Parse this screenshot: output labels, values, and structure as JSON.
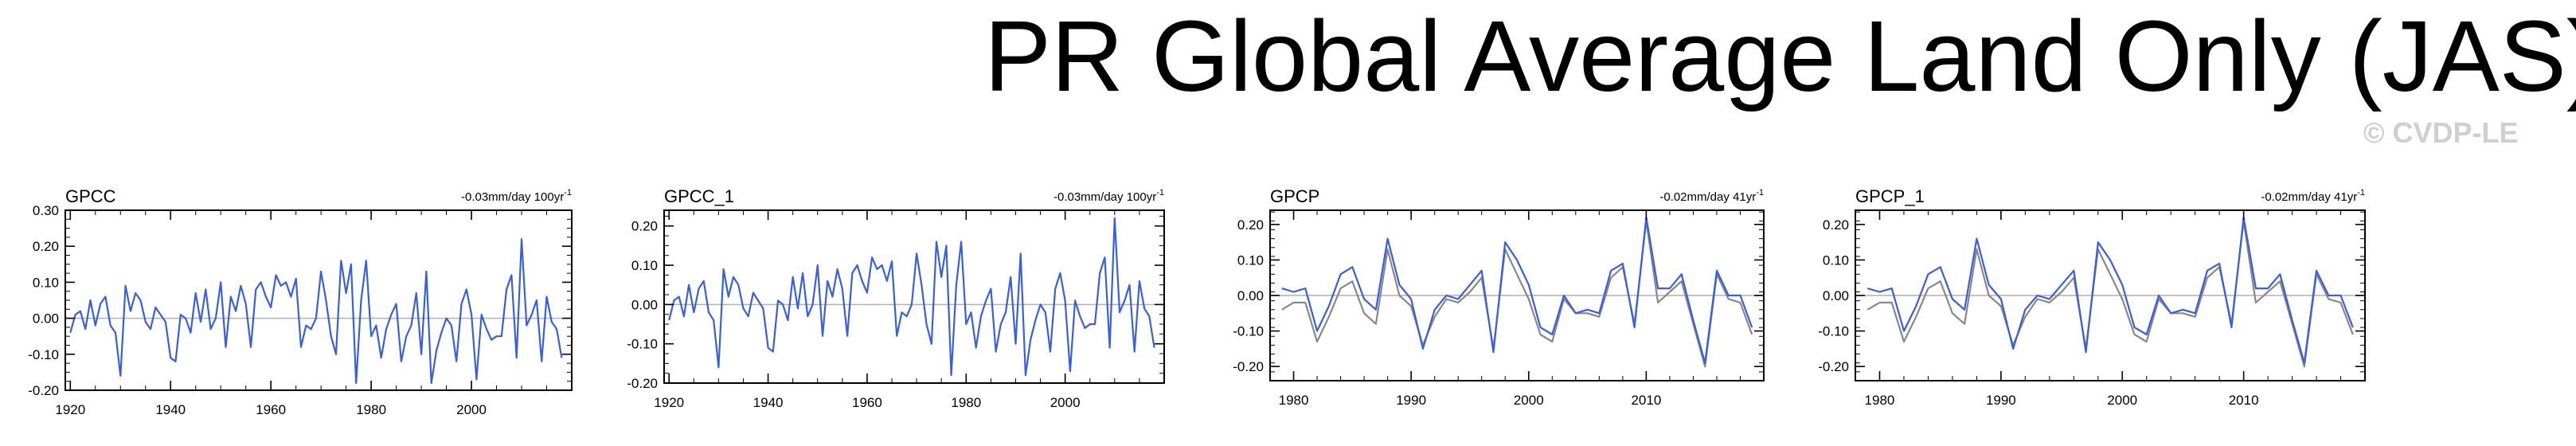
{
  "title": "PR Global Average Land Only (JAS)",
  "watermark": "© CVDP-LE",
  "colors": {
    "primary_line": "#3a5fd9",
    "secondary_line": "#888888",
    "zero_line": "#b0b0b0",
    "frame": "#000000"
  },
  "chart_data": [
    {
      "type": "line",
      "title": "GPCC",
      "trend_text": "-0.03mm/day 100yr",
      "trend_superscript": "-1",
      "xlim": [
        1919,
        2020
      ],
      "ylim": [
        -0.2,
        0.3
      ],
      "yticks": [
        -0.2,
        -0.1,
        0.0,
        0.1,
        0.2,
        0.3
      ],
      "ytick_labels": [
        "-0.20",
        "-0.10",
        "0.00",
        "0.10",
        "0.20",
        "0.30"
      ],
      "xticks": [
        1920,
        1940,
        1960,
        1980,
        2000
      ],
      "xtick_labels": [
        "1920",
        "1940",
        "1960",
        "1980",
        "2000"
      ],
      "start_year": 1920,
      "series": [
        {
          "name": "GPCC",
          "color": "#3a5fd9",
          "values": [
            -0.04,
            0.01,
            0.02,
            -0.03,
            0.05,
            -0.02,
            0.04,
            0.06,
            -0.02,
            -0.04,
            -0.16,
            0.09,
            0.02,
            0.07,
            0.05,
            -0.01,
            -0.03,
            0.03,
            0.01,
            -0.01,
            -0.11,
            -0.12,
            0.01,
            0.0,
            -0.04,
            0.07,
            -0.01,
            0.08,
            -0.03,
            0.0,
            0.1,
            -0.08,
            0.06,
            0.02,
            0.09,
            0.04,
            -0.08,
            0.08,
            0.1,
            0.06,
            0.03,
            0.12,
            0.09,
            0.1,
            0.06,
            0.11,
            -0.08,
            -0.02,
            -0.03,
            0.0,
            0.13,
            0.05,
            -0.05,
            -0.1,
            0.16,
            0.07,
            0.15,
            -0.18,
            0.05,
            0.16,
            -0.05,
            -0.02,
            -0.11,
            -0.03,
            0.01,
            0.04,
            -0.12,
            -0.05,
            -0.02,
            0.07,
            -0.1,
            0.13,
            -0.18,
            -0.09,
            -0.04,
            0.0,
            -0.02,
            -0.12,
            0.04,
            0.08,
            0.01,
            -0.17,
            0.01,
            -0.03,
            -0.06,
            -0.05,
            -0.05,
            0.08,
            0.12,
            -0.11,
            0.22,
            -0.02,
            0.01,
            0.05,
            -0.12,
            0.06,
            -0.01,
            -0.03,
            -0.11
          ]
        }
      ]
    },
    {
      "type": "line",
      "title": "GPCC_1",
      "trend_text": "-0.03mm/day 100yr",
      "trend_superscript": "-1",
      "xlim": [
        1919,
        2020
      ],
      "ylim": [
        -0.2,
        0.24
      ],
      "yticks": [
        -0.2,
        -0.1,
        0.0,
        0.1,
        0.2
      ],
      "ytick_labels": [
        "-0.20",
        "-0.10",
        "0.00",
        "0.10",
        "0.20"
      ],
      "xticks": [
        1920,
        1940,
        1960,
        1980,
        2000
      ],
      "xtick_labels": [
        "1920",
        "1940",
        "1960",
        "1980",
        "2000"
      ],
      "start_year": 1920,
      "series": [
        {
          "name": "GPCC_1",
          "color": "#3a5fd9",
          "values": [
            -0.04,
            0.01,
            0.02,
            -0.03,
            0.05,
            -0.02,
            0.04,
            0.06,
            -0.02,
            -0.04,
            -0.16,
            0.09,
            0.02,
            0.07,
            0.05,
            -0.01,
            -0.03,
            0.03,
            0.01,
            -0.01,
            -0.11,
            -0.12,
            0.01,
            0.0,
            -0.04,
            0.07,
            -0.01,
            0.08,
            -0.03,
            0.0,
            0.1,
            -0.08,
            0.06,
            0.02,
            0.09,
            0.04,
            -0.08,
            0.08,
            0.1,
            0.06,
            0.03,
            0.12,
            0.09,
            0.1,
            0.06,
            0.11,
            -0.08,
            -0.02,
            -0.03,
            0.0,
            0.13,
            0.05,
            -0.05,
            -0.1,
            0.16,
            0.07,
            0.15,
            -0.18,
            0.05,
            0.16,
            -0.05,
            -0.02,
            -0.11,
            -0.03,
            0.01,
            0.04,
            -0.12,
            -0.05,
            -0.02,
            0.07,
            -0.1,
            0.13,
            -0.18,
            -0.09,
            -0.04,
            0.0,
            -0.02,
            -0.12,
            0.04,
            0.08,
            0.01,
            -0.17,
            0.01,
            -0.03,
            -0.06,
            -0.05,
            -0.05,
            0.08,
            0.12,
            -0.11,
            0.22,
            -0.02,
            0.01,
            0.05,
            -0.12,
            0.06,
            -0.01,
            -0.03,
            -0.11
          ]
        }
      ]
    },
    {
      "type": "line",
      "title": "GPCP",
      "trend_text": "-0.02mm/day 41yr",
      "trend_superscript": "-1",
      "xlim": [
        1978,
        2020
      ],
      "ylim": [
        -0.24,
        0.24
      ],
      "yticks": [
        -0.2,
        -0.1,
        0.0,
        0.1,
        0.2
      ],
      "ytick_labels": [
        "-0.20",
        "-0.10",
        "0.00",
        "0.10",
        "0.20"
      ],
      "xticks": [
        1980,
        1990,
        2000,
        2010
      ],
      "xtick_labels": [
        "1980",
        "1990",
        "2000",
        "2010"
      ],
      "start_year": 1979,
      "series": [
        {
          "name": "GPCP",
          "color": "#3a5fd9",
          "values": [
            0.02,
            0.01,
            0.02,
            -0.1,
            -0.03,
            0.06,
            0.08,
            -0.01,
            -0.04,
            0.16,
            0.03,
            -0.01,
            -0.15,
            -0.04,
            0.0,
            -0.01,
            0.03,
            0.07,
            -0.16,
            0.15,
            0.1,
            0.03,
            -0.09,
            -0.11,
            0.0,
            -0.05,
            -0.04,
            -0.05,
            0.07,
            0.09,
            -0.09,
            0.22,
            0.02,
            0.02,
            0.06,
            -0.07,
            -0.19,
            0.07,
            0.0,
            0.0,
            -0.09
          ]
        },
        {
          "name": "GPCC",
          "color": "#888888",
          "values": [
            -0.04,
            -0.02,
            -0.02,
            -0.13,
            -0.06,
            0.02,
            0.04,
            -0.05,
            -0.08,
            0.13,
            0.0,
            -0.03,
            -0.14,
            -0.06,
            -0.01,
            -0.02,
            0.01,
            0.05,
            -0.15,
            0.13,
            0.06,
            -0.01,
            -0.11,
            -0.13,
            -0.01,
            -0.05,
            -0.05,
            -0.06,
            0.05,
            0.08,
            -0.08,
            0.21,
            -0.02,
            0.01,
            0.04,
            -0.08,
            -0.2,
            0.06,
            -0.01,
            -0.02,
            -0.11
          ]
        }
      ]
    },
    {
      "type": "line",
      "title": "GPCP_1",
      "trend_text": "-0.02mm/day 41yr",
      "trend_superscript": "-1",
      "xlim": [
        1978,
        2020
      ],
      "ylim": [
        -0.24,
        0.24
      ],
      "yticks": [
        -0.2,
        -0.1,
        0.0,
        0.1,
        0.2
      ],
      "ytick_labels": [
        "-0.20",
        "-0.10",
        "0.00",
        "0.10",
        "0.20"
      ],
      "xticks": [
        1980,
        1990,
        2000,
        2010
      ],
      "xtick_labels": [
        "1980",
        "1990",
        "2000",
        "2010"
      ],
      "start_year": 1979,
      "series": [
        {
          "name": "GPCP_1",
          "color": "#3a5fd9",
          "values": [
            0.02,
            0.01,
            0.02,
            -0.1,
            -0.03,
            0.06,
            0.08,
            -0.01,
            -0.04,
            0.16,
            0.03,
            -0.01,
            -0.15,
            -0.04,
            0.0,
            -0.01,
            0.03,
            0.07,
            -0.16,
            0.15,
            0.1,
            0.03,
            -0.09,
            -0.11,
            0.0,
            -0.05,
            -0.04,
            -0.05,
            0.07,
            0.09,
            -0.09,
            0.22,
            0.02,
            0.02,
            0.06,
            -0.07,
            -0.19,
            0.07,
            0.0,
            0.0,
            -0.09
          ]
        },
        {
          "name": "GPCC",
          "color": "#888888",
          "values": [
            -0.04,
            -0.02,
            -0.02,
            -0.13,
            -0.06,
            0.02,
            0.04,
            -0.05,
            -0.08,
            0.13,
            0.0,
            -0.03,
            -0.14,
            -0.06,
            -0.01,
            -0.02,
            0.01,
            0.05,
            -0.15,
            0.13,
            0.06,
            -0.01,
            -0.11,
            -0.13,
            -0.01,
            -0.05,
            -0.05,
            -0.06,
            0.05,
            0.08,
            -0.08,
            0.21,
            -0.02,
            0.01,
            0.04,
            -0.08,
            -0.2,
            0.06,
            -0.01,
            -0.02,
            -0.11
          ]
        }
      ]
    }
  ]
}
